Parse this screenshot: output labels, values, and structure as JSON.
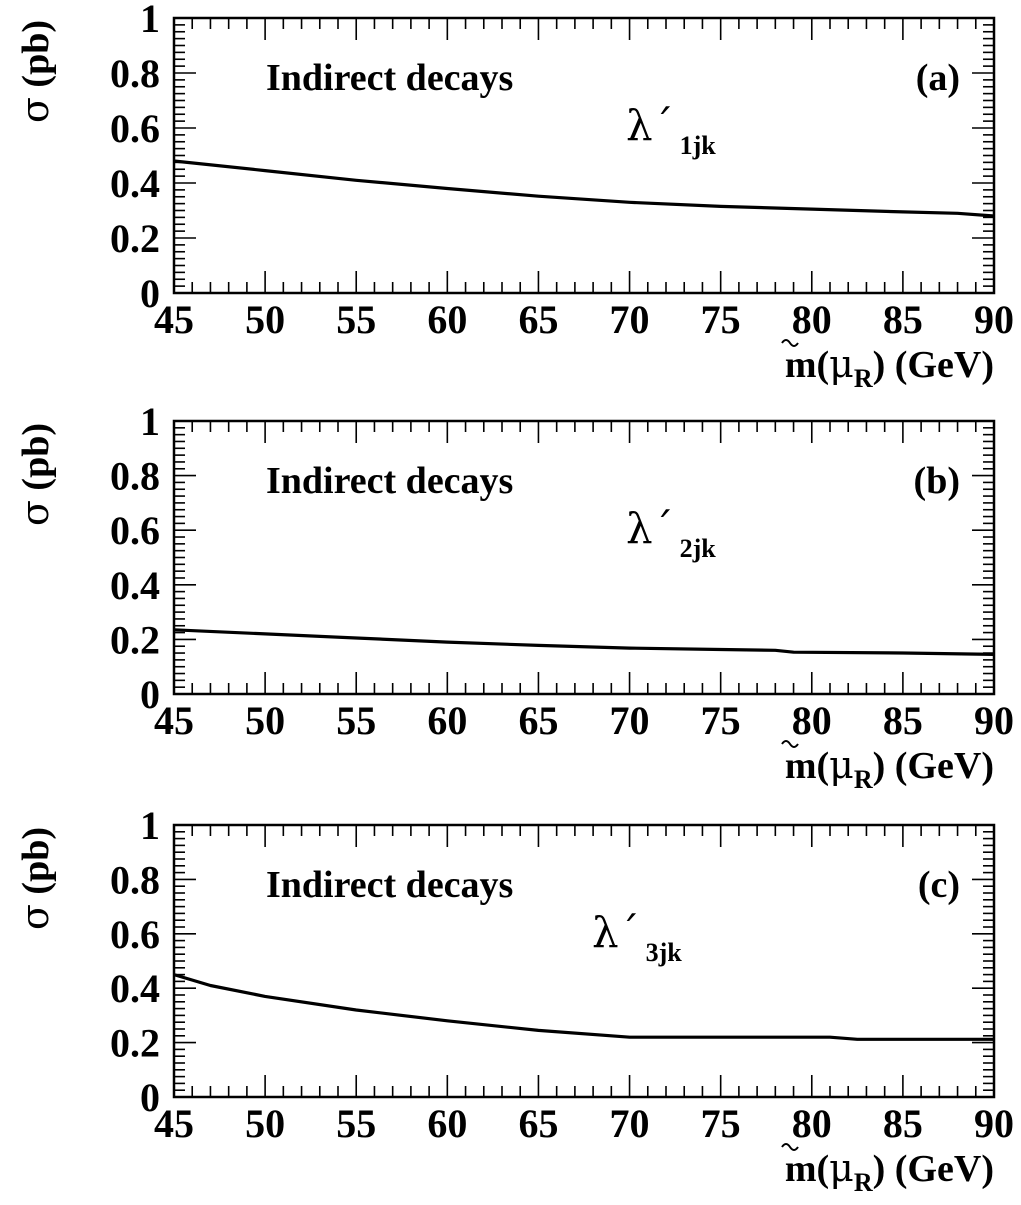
{
  "chart_data": [
    {
      "type": "line",
      "panel_label": "(a)",
      "annotation": "Indirect decays",
      "coupling_symbol": "λ´",
      "coupling_index": "1jk",
      "ylabel_symbol": "σ",
      "ylabel_unit": "(pb)",
      "xlabel_prefix": "m(",
      "xlabel_particle": "μ",
      "xlabel_sub": "R",
      "xlabel_suffix": ") (GeV)",
      "xlim": [
        45,
        90
      ],
      "ylim": [
        0,
        1
      ],
      "xticks": [
        "45",
        "50",
        "55",
        "60",
        "65",
        "70",
        "75",
        "80",
        "85",
        "90"
      ],
      "yticks": [
        "0",
        "0.2",
        "0.4",
        "0.6",
        "0.8",
        "1"
      ],
      "x": [
        45,
        50,
        55,
        60,
        65,
        70,
        75,
        80,
        85,
        88,
        90
      ],
      "y": [
        0.48,
        0.445,
        0.41,
        0.38,
        0.352,
        0.33,
        0.315,
        0.305,
        0.295,
        0.29,
        0.28
      ]
    },
    {
      "type": "line",
      "panel_label": "(b)",
      "annotation": "Indirect decays",
      "coupling_symbol": "λ´",
      "coupling_index": "2jk",
      "ylabel_symbol": "σ",
      "ylabel_unit": "(pb)",
      "xlabel_prefix": "m(",
      "xlabel_particle": "μ",
      "xlabel_sub": "R",
      "xlabel_suffix": ") (GeV)",
      "xlim": [
        45,
        90
      ],
      "ylim": [
        0,
        1
      ],
      "xticks": [
        "45",
        "50",
        "55",
        "60",
        "65",
        "70",
        "75",
        "80",
        "85",
        "90"
      ],
      "yticks": [
        "0",
        "0.2",
        "0.4",
        "0.6",
        "0.8",
        "1"
      ],
      "x": [
        45,
        50,
        55,
        60,
        65,
        70,
        75,
        78,
        79,
        85,
        90
      ],
      "y": [
        0.235,
        0.22,
        0.205,
        0.19,
        0.178,
        0.168,
        0.163,
        0.16,
        0.153,
        0.15,
        0.145
      ]
    },
    {
      "type": "line",
      "panel_label": "(c)",
      "annotation": "Indirect decays",
      "coupling_symbol": "λ´",
      "coupling_index": "3jk",
      "ylabel_symbol": "σ",
      "ylabel_unit": "(pb)",
      "xlabel_prefix": "m(",
      "xlabel_particle": "μ",
      "xlabel_sub": "R",
      "xlabel_suffix": ") (GeV)",
      "xlim": [
        45,
        90
      ],
      "ylim": [
        0,
        1
      ],
      "xticks": [
        "45",
        "50",
        "55",
        "60",
        "65",
        "70",
        "75",
        "80",
        "85",
        "90"
      ],
      "yticks": [
        "0",
        "0.2",
        "0.4",
        "0.6",
        "0.8",
        "1"
      ],
      "x": [
        45,
        47,
        50,
        55,
        60,
        65,
        70,
        75,
        80,
        81,
        82.5,
        85,
        90
      ],
      "y": [
        0.45,
        0.41,
        0.37,
        0.32,
        0.28,
        0.245,
        0.22,
        0.22,
        0.22,
        0.22,
        0.212,
        0.212,
        0.212
      ]
    }
  ]
}
